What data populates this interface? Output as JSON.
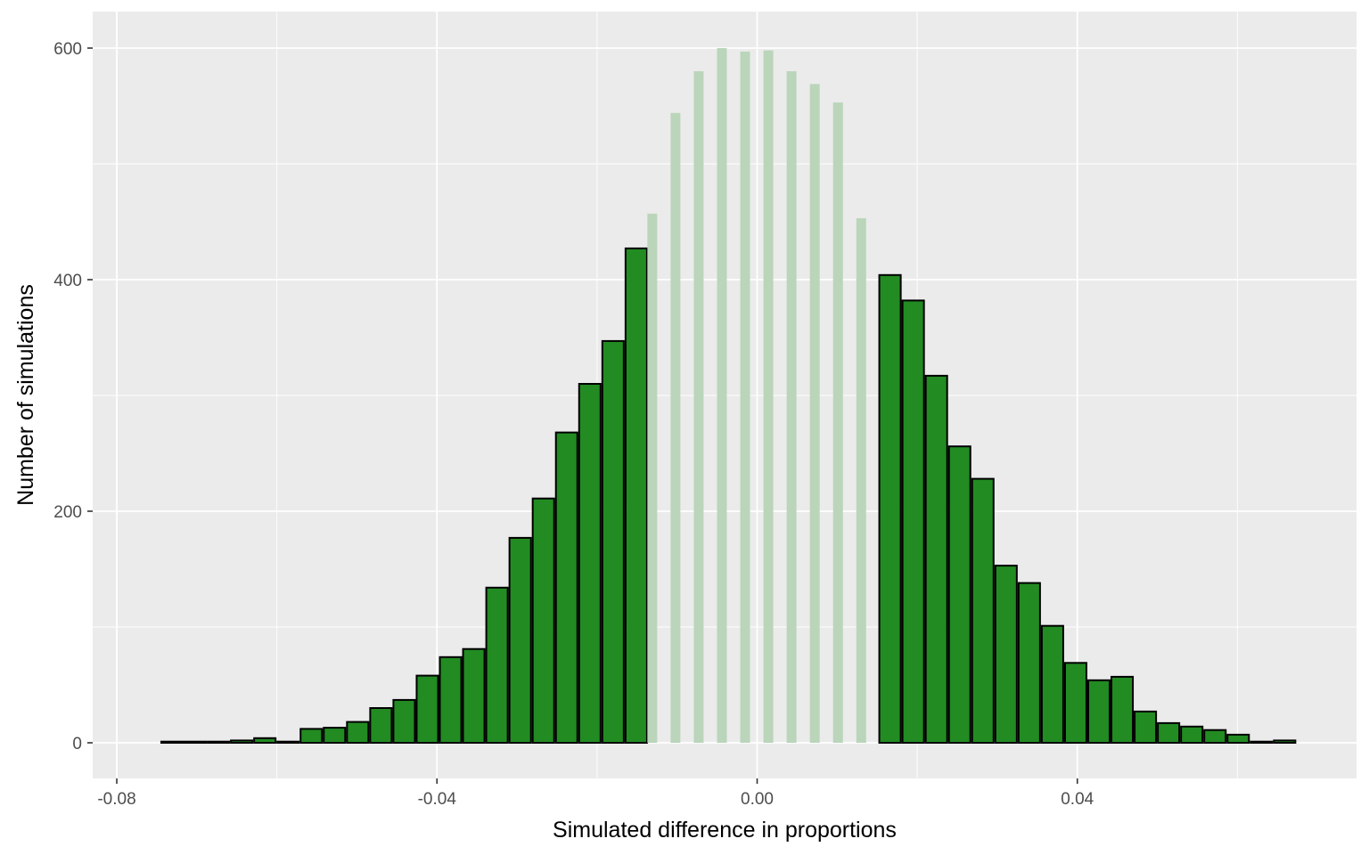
{
  "chart_data": {
    "type": "bar",
    "title": "",
    "xlabel": "Simulated difference in proportions",
    "ylabel": "Number of simulations",
    "xlim": [
      -0.08,
      0.075
    ],
    "ylim": [
      -30,
      615
    ],
    "grid": true,
    "legend": "none",
    "x_ticks": [
      {
        "value": -0.08,
        "label": "-0.08"
      },
      {
        "value": -0.04,
        "label": "-0.04"
      },
      {
        "value": 0.0,
        "label": "0.00"
      },
      {
        "value": 0.04,
        "label": "0.04"
      }
    ],
    "y_ticks": [
      {
        "value": 0,
        "label": "0"
      },
      {
        "value": 200,
        "label": "200"
      },
      {
        "value": 400,
        "label": "400"
      },
      {
        "value": 600,
        "label": "600"
      }
    ],
    "colors": {
      "panel_background": "#EBEBEB",
      "grid_line": "#FFFFFF",
      "extreme_fill": "#228B22",
      "extreme_outline": "#000000",
      "central_fill": "#BAD5BA"
    },
    "series": [
      {
        "name": "",
        "style": "extreme",
        "x": [
          -0.0731,
          -0.0702,
          -0.0673,
          -0.0644,
          -0.0615,
          -0.0586,
          -0.0557,
          -0.0528,
          -0.0499,
          -0.047,
          -0.0441,
          -0.0412,
          -0.0383,
          -0.0354,
          -0.0325,
          -0.0296,
          -0.0267,
          -0.0238,
          -0.0209,
          -0.018,
          -0.0151,
          0.0166,
          0.0195,
          0.0224,
          0.0253,
          0.0282,
          0.0311,
          0.034,
          0.0369,
          0.0398,
          0.0427,
          0.0456,
          0.0485,
          0.0514,
          0.0543,
          0.0572,
          0.0601,
          0.063,
          0.0659
        ],
        "values": [
          1,
          1,
          1,
          2,
          4,
          1,
          12,
          13,
          18,
          30,
          37,
          58,
          74,
          81,
          134,
          177,
          211,
          268,
          310,
          347,
          427,
          404,
          382,
          317,
          256,
          228,
          153,
          138,
          101,
          69,
          54,
          57,
          27,
          17,
          14,
          11,
          7,
          1,
          2
        ]
      },
      {
        "name": "",
        "style": "central",
        "x": [
          -0.0131,
          -0.0102,
          -0.0073,
          -0.0044,
          -0.0015,
          0.0014,
          0.0043,
          0.0072,
          0.0101,
          0.013
        ],
        "values": [
          457,
          544,
          580,
          600,
          597,
          598,
          580,
          569,
          553,
          453
        ]
      }
    ]
  }
}
